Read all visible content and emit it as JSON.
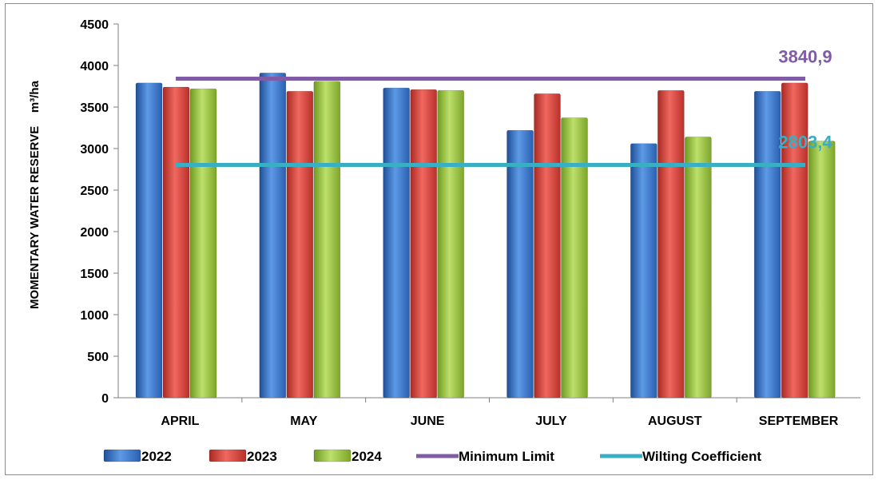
{
  "chart_data": {
    "type": "bar",
    "title": "",
    "xlabel": "",
    "ylabel": "MOMENTARY WATER RESERVE    m³/ha",
    "ylim": [
      0,
      4500
    ],
    "yticks": [
      0,
      500,
      1000,
      1500,
      2000,
      2500,
      3000,
      3500,
      4000,
      4500
    ],
    "grid": false,
    "legend_position": "bottom",
    "categories": [
      "APRIL",
      "MAY",
      "JUNE",
      "JULY",
      "AUGUST",
      "SEPTEMBER"
    ],
    "series": [
      {
        "name": "2022",
        "color": "#3a78c9",
        "values": [
          3790,
          3910,
          3730,
          3220,
          3060,
          3690
        ]
      },
      {
        "name": "2023",
        "color": "#d9403a",
        "values": [
          3740,
          3690,
          3710,
          3660,
          3700,
          3790
        ]
      },
      {
        "name": "2024",
        "color": "#97c33b",
        "values": [
          3720,
          3810,
          3700,
          3370,
          3140,
          3090
        ]
      }
    ],
    "reference_lines": [
      {
        "name": "Minimum Limit",
        "value": 3840.9,
        "label": "3840,9",
        "color": "#7f5ca5"
      },
      {
        "name": "Wilting Coefficient",
        "value": 2803.4,
        "label": "2803,4",
        "color": "#3aaec2"
      }
    ]
  }
}
